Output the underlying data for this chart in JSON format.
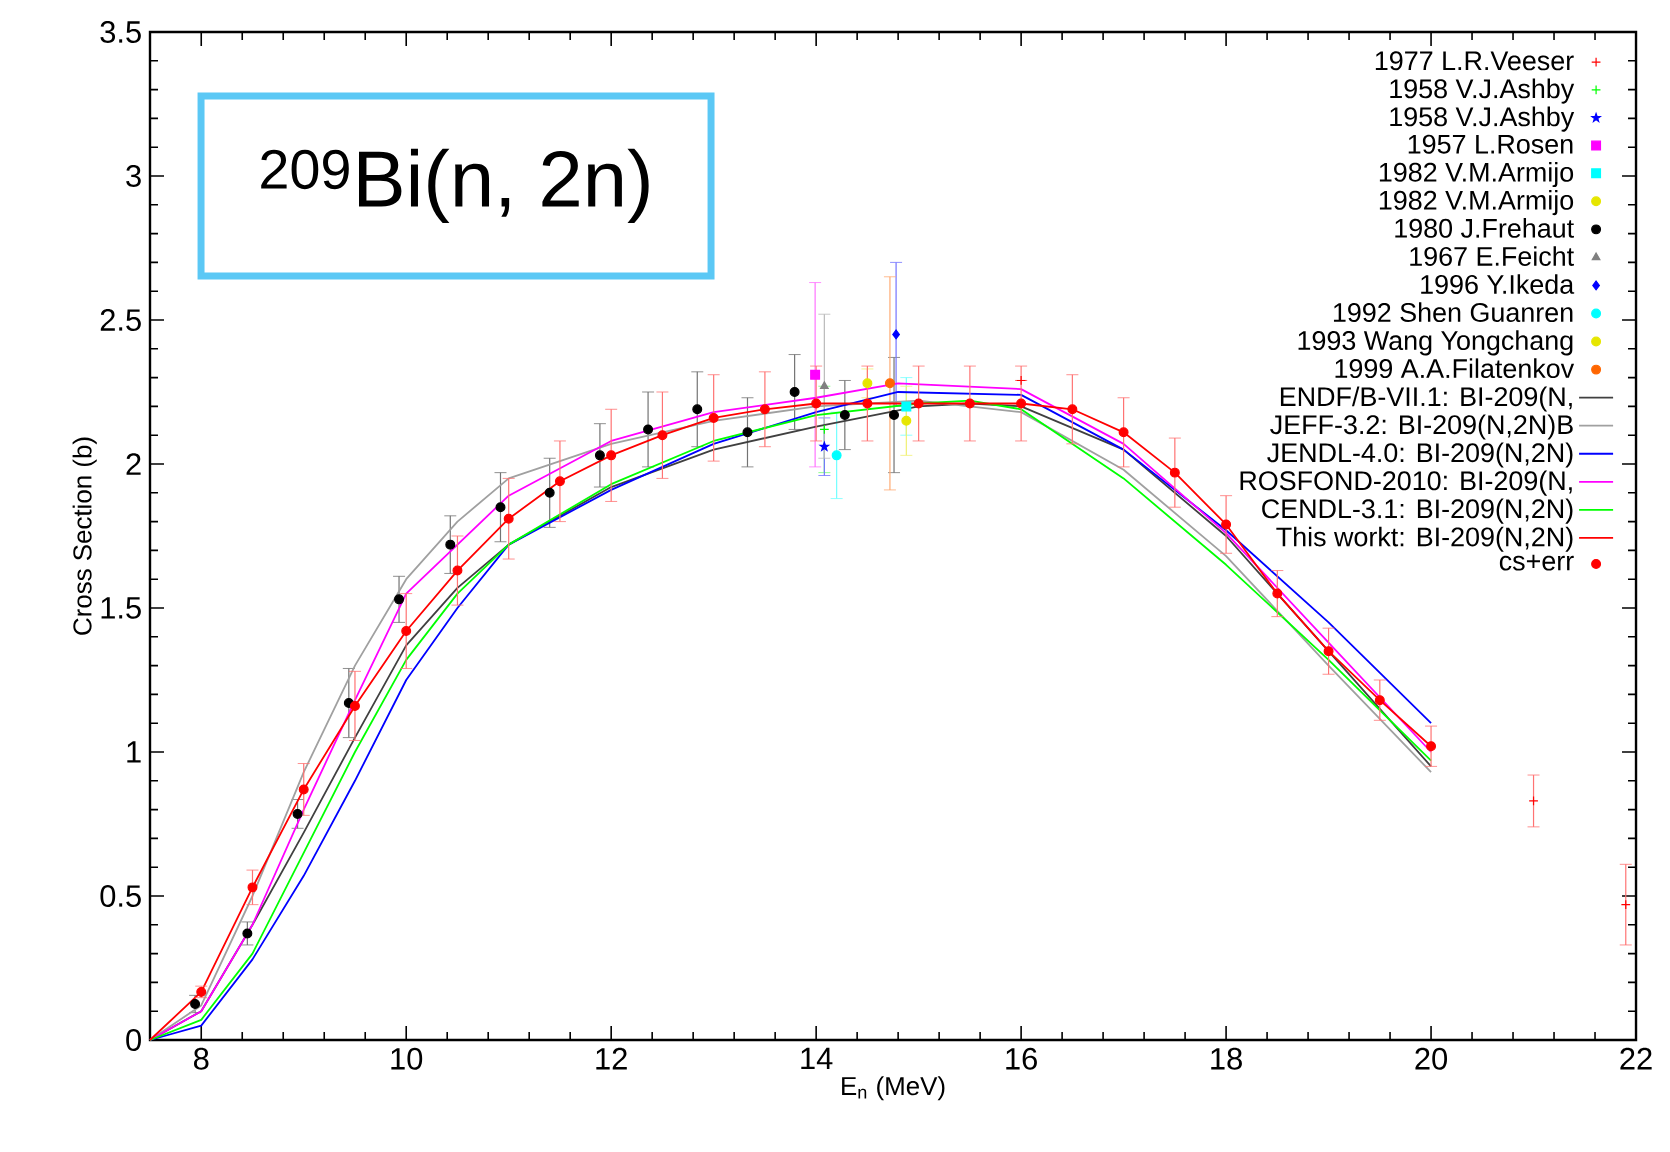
{
  "chart_data": {
    "type": "scatter",
    "title": "$^{209}$Bi(n, 2n)",
    "xlabel": "E$_{n}$ (MeV)",
    "ylabel": "Cross Section (b)",
    "xlim": [
      7.5,
      22
    ],
    "ylim": [
      0,
      3.5
    ],
    "xticks": [
      8,
      10,
      12,
      14,
      16,
      18,
      20,
      22
    ],
    "yticks": [
      0,
      0.5,
      1,
      1.5,
      2,
      2.5,
      3,
      3.5
    ],
    "legend": "top right",
    "series": [
      {
        "name": "1977 L.R.Veeser",
        "marker": "cross",
        "color": "#ff0000",
        "x": [
          16.0,
          21.0,
          21.9
        ],
        "values": [
          2.29,
          0.83,
          0.47
        ],
        "errors": [
          null,
          0.09,
          0.14
        ]
      },
      {
        "name": "1958 V.J.Ashby",
        "marker": "cross",
        "color": "#00ff00",
        "x": [
          14.08
        ],
        "values": [
          2.12
        ],
        "errors": [
          0.15
        ]
      },
      {
        "name": "1958 V.J.Ashby",
        "marker": "star",
        "color": "#0000ff",
        "x": [
          14.08
        ],
        "values": [
          2.06
        ],
        "errors": [
          0.1
        ]
      },
      {
        "name": "1957 L.Rosen",
        "marker": "square",
        "color": "#ff00ff",
        "x": [
          13.99
        ],
        "values": [
          2.31
        ],
        "errors": [
          0.32
        ]
      },
      {
        "name": "1982 V.M.Armijo",
        "marker": "square",
        "color": "#00ffff",
        "x": [
          14.88
        ],
        "values": [
          2.2
        ],
        "errors": [
          0.1
        ]
      },
      {
        "name": "1982 V.M.Armijo",
        "marker": "circle",
        "color": "#e6e600",
        "x": [
          14.88
        ],
        "values": [
          2.15
        ],
        "errors": [
          0.12
        ]
      },
      {
        "name": "1980 J.Frehaut",
        "marker": "circle",
        "color": "#000000",
        "x": [
          7.94,
          8.45,
          8.94,
          9.44,
          9.93,
          10.43,
          10.92,
          11.4,
          11.89,
          12.36,
          12.84,
          13.33,
          13.79,
          14.28,
          14.76
        ],
        "values": [
          0.125,
          0.37,
          0.785,
          1.17,
          1.53,
          1.72,
          1.85,
          1.9,
          2.03,
          2.12,
          2.19,
          2.11,
          2.25,
          2.17,
          2.17
        ],
        "errors": [
          0.03,
          0.04,
          0.05,
          0.12,
          0.08,
          0.1,
          0.12,
          0.12,
          0.11,
          0.13,
          0.13,
          0.12,
          0.13,
          0.12,
          0.2
        ]
      },
      {
        "name": "1967 E.Feicht",
        "marker": "triangle",
        "color": "#808080",
        "x": [
          14.08
        ],
        "values": [
          2.27
        ],
        "errors": [
          0.25
        ]
      },
      {
        "name": "1996 Y.Ikeda",
        "marker": "diamond",
        "color": "#0000ff",
        "x": [
          14.78
        ],
        "values": [
          2.45
        ],
        "errors": [
          0.25
        ]
      },
      {
        "name": "1992 Shen Guanren",
        "marker": "circle",
        "color": "#00ffff",
        "x": [
          14.2
        ],
        "values": [
          2.03
        ],
        "errors": [
          0.15
        ]
      },
      {
        "name": "1993 Wang Yongchang",
        "marker": "circle",
        "color": "#e6e600",
        "x": [
          14.5
        ],
        "values": [
          2.28
        ],
        "errors": [
          0.05
        ]
      },
      {
        "name": "1999 A.A.Filatenkov",
        "marker": "circle",
        "color": "#ff6600",
        "x": [
          14.72
        ],
        "values": [
          2.28
        ],
        "errors": [
          0.37
        ]
      },
      {
        "name": "ENDF/B-VII.1: BI-209(N,",
        "type": "line",
        "color": "#404040",
        "x": [
          7.5,
          8,
          8.5,
          9,
          9.5,
          10,
          10.5,
          11,
          12,
          13,
          14,
          15,
          15.5,
          16,
          17,
          18,
          19,
          20
        ],
        "values": [
          0,
          0.1,
          0.4,
          0.72,
          1.05,
          1.37,
          1.57,
          1.72,
          1.92,
          2.05,
          2.13,
          2.2,
          2.21,
          2.2,
          2.05,
          1.75,
          1.35,
          0.95
        ]
      },
      {
        "name": "JEFF-3.2: BI-209(N,2N)B",
        "type": "line",
        "color": "#a0a0a0",
        "x": [
          7.5,
          8,
          8.5,
          9,
          9.5,
          10,
          10.5,
          11,
          12,
          13,
          14,
          15,
          16,
          17,
          18,
          19,
          20
        ],
        "values": [
          0,
          0.12,
          0.5,
          0.93,
          1.3,
          1.6,
          1.8,
          1.95,
          2.07,
          2.15,
          2.2,
          2.22,
          2.18,
          1.98,
          1.68,
          1.3,
          0.93
        ]
      },
      {
        "name": "JENDL-4.0: BI-209(N,2N)",
        "type": "line",
        "color": "#0000ff",
        "x": [
          7.5,
          8,
          8.5,
          9,
          9.5,
          10,
          10.5,
          11,
          12,
          13,
          14,
          14.8,
          16,
          17,
          18,
          19,
          20
        ],
        "values": [
          0,
          0.05,
          0.28,
          0.57,
          0.9,
          1.25,
          1.5,
          1.72,
          1.91,
          2.07,
          2.18,
          2.25,
          2.24,
          2.05,
          1.77,
          1.45,
          1.1
        ]
      },
      {
        "name": "ROSFOND-2010: BI-209(N,",
        "type": "line",
        "color": "#ff00ff",
        "x": [
          7.5,
          8,
          8.5,
          9,
          9.5,
          10,
          10.5,
          11,
          12,
          13,
          14,
          14.8,
          16,
          17,
          18,
          19,
          20
        ],
        "values": [
          0,
          0.1,
          0.4,
          0.8,
          1.18,
          1.55,
          1.72,
          1.89,
          2.08,
          2.18,
          2.23,
          2.28,
          2.26,
          2.07,
          1.76,
          1.38,
          1.0
        ]
      },
      {
        "name": "CENDL-3.1: BI-209(N,2N)",
        "type": "line",
        "color": "#00ff00",
        "x": [
          7.5,
          8,
          8.5,
          9,
          9.5,
          10,
          10.5,
          11,
          12,
          13,
          14,
          15,
          15.5,
          16,
          17,
          18,
          19,
          20
        ],
        "values": [
          0,
          0.07,
          0.3,
          0.65,
          1.0,
          1.32,
          1.55,
          1.72,
          1.93,
          2.08,
          2.17,
          2.21,
          2.22,
          2.19,
          1.95,
          1.65,
          1.32,
          0.97
        ]
      },
      {
        "name": "This workt: BI-209(N,2N)",
        "type": "line",
        "color": "#ff0000",
        "x": [
          7.5,
          8,
          8.5,
          9,
          9.5,
          10,
          10.5,
          11,
          11.5,
          12,
          12.5,
          13,
          13.5,
          14,
          14.5,
          15,
          15.5,
          16,
          16.5,
          17,
          17.5,
          18,
          18.5,
          19,
          19.5,
          20
        ],
        "values": [
          0,
          0.167,
          0.53,
          0.87,
          1.16,
          1.42,
          1.63,
          1.81,
          1.94,
          2.03,
          2.1,
          2.16,
          2.19,
          2.21,
          2.21,
          2.21,
          2.21,
          2.21,
          2.19,
          2.11,
          1.97,
          1.79,
          1.55,
          1.35,
          1.18,
          1.02
        ]
      },
      {
        "name": "cs+err",
        "marker": "circle",
        "color": "#ff0000",
        "x": [
          8,
          8.5,
          9,
          9.5,
          10,
          10.5,
          11,
          11.5,
          12,
          12.5,
          13,
          13.5,
          14,
          14.5,
          15,
          15.5,
          16,
          16.5,
          17,
          17.5,
          18,
          18.5,
          19,
          19.5,
          20
        ],
        "values": [
          0.167,
          0.53,
          0.87,
          1.16,
          1.42,
          1.63,
          1.81,
          1.94,
          2.03,
          2.1,
          2.16,
          2.19,
          2.21,
          2.21,
          2.21,
          2.21,
          2.21,
          2.19,
          2.11,
          1.97,
          1.79,
          1.55,
          1.35,
          1.18,
          1.02
        ],
        "errors": [
          0.02,
          0.06,
          0.09,
          0.12,
          0.13,
          0.12,
          0.14,
          0.14,
          0.16,
          0.15,
          0.15,
          0.13,
          0.13,
          0.13,
          0.13,
          0.13,
          0.13,
          0.12,
          0.12,
          0.12,
          0.1,
          0.08,
          0.08,
          0.07,
          0.07
        ]
      }
    ]
  }
}
